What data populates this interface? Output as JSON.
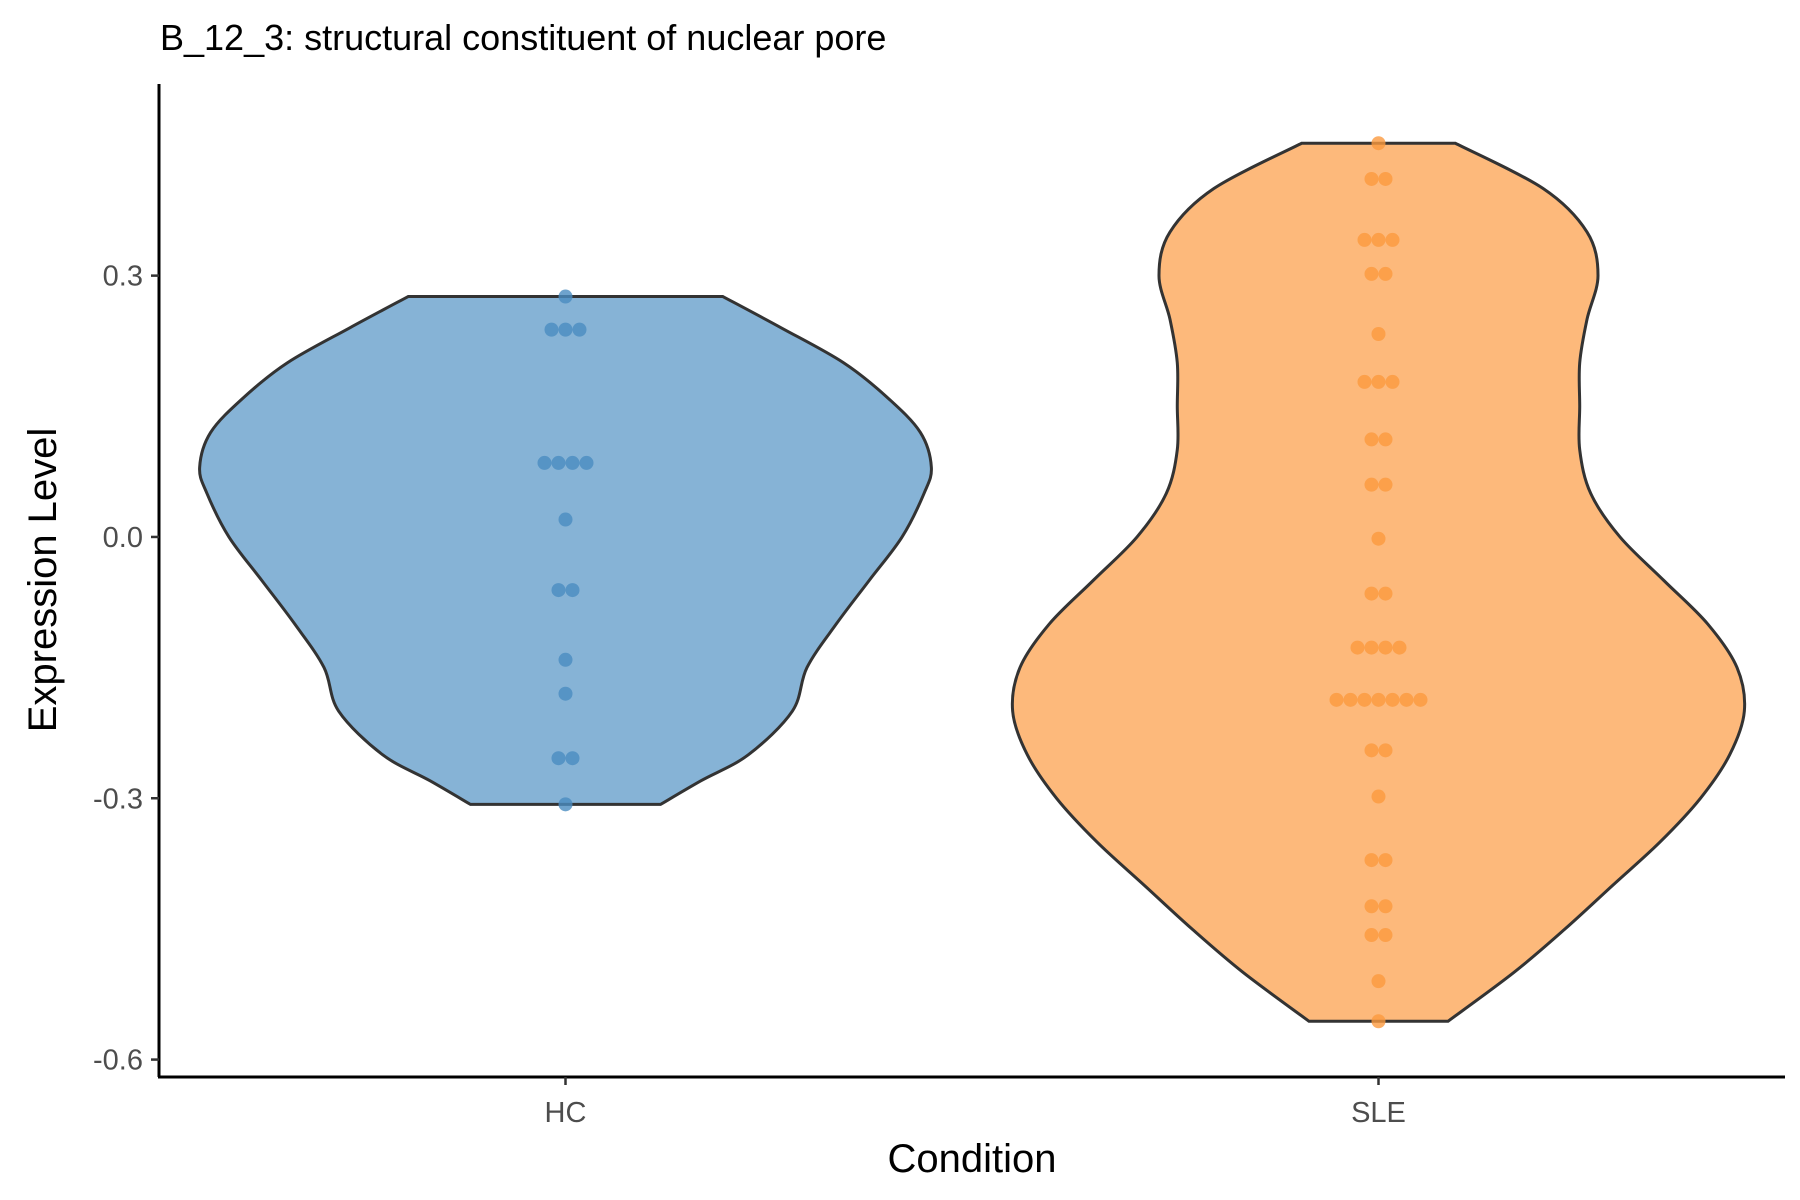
{
  "chart_data": {
    "type": "violin",
    "title": "B_12_3: structural constituent of nuclear pore",
    "xlabel": "Condition",
    "ylabel": "Expression Level",
    "categories": [
      "HC",
      "SLE"
    ],
    "ylim": [
      -0.62,
      0.52
    ],
    "yticks": [
      -0.6,
      -0.3,
      0.0,
      0.3
    ],
    "ytick_labels": [
      "-0.6",
      "-0.3",
      "0.0",
      "0.3"
    ],
    "grid": false,
    "legend": "none",
    "colors": {
      "HC": {
        "fill": "#86b3d6",
        "point": "#4a8cc0"
      },
      "SLE": {
        "fill": "#fdb97b",
        "point": "#fb9a3e"
      },
      "outline": "#333333"
    },
    "series": [
      {
        "category": "HC",
        "points": [
          0.276,
          0.238,
          0.238,
          0.238,
          0.085,
          0.085,
          0.085,
          0.085,
          0.02,
          -0.061,
          -0.061,
          -0.141,
          -0.18,
          -0.254,
          -0.254,
          -0.307
        ],
        "density": [
          [
            -0.307,
            0.26
          ],
          [
            -0.28,
            0.37
          ],
          [
            -0.25,
            0.5
          ],
          [
            -0.2,
            0.62
          ],
          [
            -0.15,
            0.66
          ],
          [
            -0.1,
            0.74
          ],
          [
            -0.05,
            0.83
          ],
          [
            0.0,
            0.92
          ],
          [
            0.05,
            0.98
          ],
          [
            0.08,
            1.0
          ],
          [
            0.12,
            0.97
          ],
          [
            0.16,
            0.88
          ],
          [
            0.2,
            0.76
          ],
          [
            0.24,
            0.59
          ],
          [
            0.276,
            0.43
          ]
        ]
      },
      {
        "category": "SLE",
        "points": [
          0.452,
          0.411,
          0.411,
          0.341,
          0.341,
          0.341,
          0.302,
          0.302,
          0.233,
          0.178,
          0.178,
          0.178,
          0.112,
          0.112,
          0.06,
          0.06,
          -0.002,
          -0.065,
          -0.065,
          -0.127,
          -0.127,
          -0.127,
          -0.127,
          -0.187,
          -0.187,
          -0.187,
          -0.187,
          -0.187,
          -0.187,
          -0.187,
          -0.245,
          -0.245,
          -0.298,
          -0.371,
          -0.371,
          -0.424,
          -0.424,
          -0.457,
          -0.457,
          -0.51,
          -0.556
        ],
        "density": [
          [
            -0.556,
            0.19
          ],
          [
            -0.5,
            0.37
          ],
          [
            -0.45,
            0.51
          ],
          [
            -0.4,
            0.64
          ],
          [
            -0.35,
            0.77
          ],
          [
            -0.3,
            0.88
          ],
          [
            -0.25,
            0.96
          ],
          [
            -0.2,
            1.0
          ],
          [
            -0.15,
            0.98
          ],
          [
            -0.1,
            0.9
          ],
          [
            -0.05,
            0.78
          ],
          [
            0.0,
            0.66
          ],
          [
            0.05,
            0.58
          ],
          [
            0.1,
            0.55
          ],
          [
            0.15,
            0.55
          ],
          [
            0.2,
            0.55
          ],
          [
            0.25,
            0.57
          ],
          [
            0.3,
            0.6
          ],
          [
            0.35,
            0.57
          ],
          [
            0.4,
            0.45
          ],
          [
            0.452,
            0.21
          ]
        ]
      }
    ]
  }
}
